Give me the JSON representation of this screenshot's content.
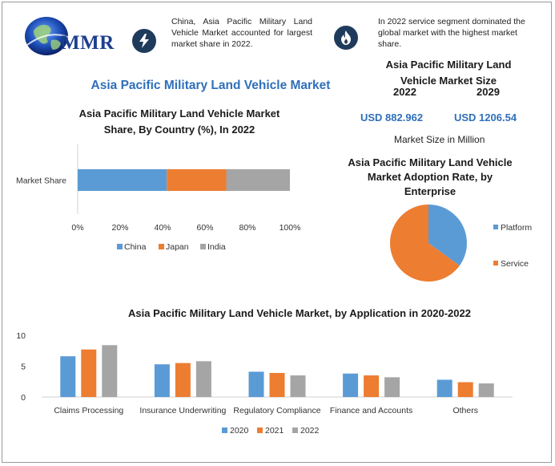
{
  "logo": {
    "text": "MMR"
  },
  "notes": {
    "note1": "China, Asia Pacific Military Land Vehicle Market accounted for largest market share in 2022.",
    "note2": "In 2022 service segment dominated the global market with the highest market share."
  },
  "main_title": "Asia Pacific Military Land Vehicle Market",
  "market_size": {
    "title_line1": "Asia Pacific Military Land",
    "title_line2": "Vehicle Market Size",
    "year_start": "2022",
    "year_end": "2029",
    "value_start": "USD 882.962",
    "value_end": "USD 1206.54",
    "unit_label": "Market Size in Million"
  },
  "colors": {
    "blue": "#5b9bd5",
    "orange": "#ed7d31",
    "gray": "#a5a5a5",
    "title_blue": "#2f6fba"
  },
  "chart_data": [
    {
      "type": "bar",
      "orientation": "horizontal-stacked",
      "title_line1": "Asia Pacific Military Land Vehicle Market",
      "title_line2": "Share, By Country (%), In 2022",
      "categories": [
        "Market Share"
      ],
      "series": [
        {
          "name": "China",
          "values": [
            42
          ]
        },
        {
          "name": "Japan",
          "values": [
            28
          ]
        },
        {
          "name": "India",
          "values": [
            30
          ]
        }
      ],
      "xlim": [
        0,
        100
      ],
      "xticks": [
        "0%",
        "20%",
        "40%",
        "60%",
        "80%",
        "100%"
      ],
      "legend": "bottom"
    },
    {
      "type": "pie",
      "title_line1": "Asia Pacific Military Land Vehicle",
      "title_line2": "Market Adoption Rate, by",
      "title_line3": "Enterprise",
      "labels": [
        "Platform",
        "Service"
      ],
      "values": [
        35,
        65
      ],
      "legend": "right"
    },
    {
      "type": "bar",
      "title": "Asia Pacific Military Land Vehicle Market, by Application in 2020-2022",
      "categories": [
        "Claims Processing",
        "Insurance Underwriting",
        "Regulatory Compliance",
        "Finance and Accounts",
        "Others"
      ],
      "series": [
        {
          "name": "2020",
          "values": [
            6.6,
            5.3,
            4.1,
            3.8,
            2.8
          ]
        },
        {
          "name": "2021",
          "values": [
            7.7,
            5.5,
            3.9,
            3.5,
            2.4
          ]
        },
        {
          "name": "2022",
          "values": [
            8.4,
            5.8,
            3.5,
            3.2,
            2.2
          ]
        }
      ],
      "ylim": [
        0,
        10
      ],
      "yticks": [
        "0",
        "5",
        "10"
      ],
      "legend": "bottom"
    }
  ]
}
